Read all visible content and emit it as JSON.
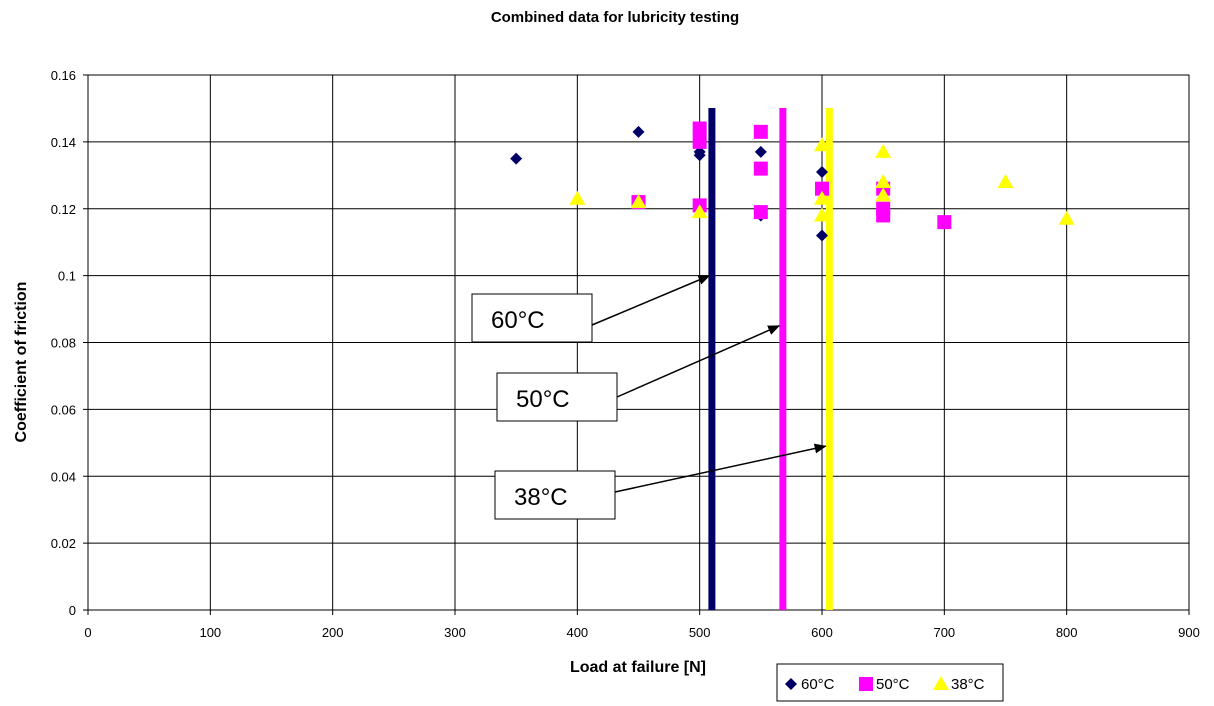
{
  "chart_data": {
    "type": "scatter",
    "title": "Combined data for lubricity testing",
    "xlabel": "Load at failure [N]",
    "ylabel": "Coefficient of friction",
    "xlim": [
      0,
      900
    ],
    "ylim": [
      0,
      0.16
    ],
    "xticks": [
      "0",
      "100",
      "200",
      "300",
      "400",
      "500",
      "600",
      "700",
      "800",
      "900"
    ],
    "yticks": [
      "0",
      "0.02",
      "0.04",
      "0.06",
      "0.08",
      "0.1",
      "0.12",
      "0.14",
      "0.16"
    ],
    "grid": true,
    "legend_position": "bottom-right",
    "series": [
      {
        "name": "60°C",
        "marker": "diamond",
        "color": "#000066",
        "x": [
          350,
          450,
          500,
          500,
          550,
          550,
          550,
          600,
          600,
          600,
          650
        ],
        "y": [
          0.135,
          0.143,
          0.137,
          0.136,
          0.137,
          0.132,
          0.118,
          0.131,
          0.126,
          0.112,
          0.125
        ]
      },
      {
        "name": "50°C",
        "marker": "square",
        "color": "#ff00ff",
        "x": [
          450,
          500,
          500,
          500,
          550,
          550,
          550,
          600,
          650,
          650,
          650,
          700
        ],
        "y": [
          0.122,
          0.144,
          0.14,
          0.121,
          0.143,
          0.132,
          0.119,
          0.126,
          0.126,
          0.12,
          0.118,
          0.116
        ]
      },
      {
        "name": "38°C",
        "marker": "triangle",
        "color": "#ffff00",
        "x": [
          400,
          450,
          500,
          600,
          600,
          600,
          650,
          650,
          650,
          750,
          800
        ],
        "y": [
          0.123,
          0.122,
          0.119,
          0.139,
          0.123,
          0.118,
          0.137,
          0.128,
          0.124,
          0.128,
          0.117
        ]
      }
    ],
    "vertical_lines": [
      {
        "label": "60°C",
        "x": 510,
        "color": "#000066"
      },
      {
        "label": "50°C",
        "x": 568,
        "color": "#ff00ff"
      },
      {
        "label": "38°C",
        "x": 606,
        "color": "#ffff00"
      }
    ],
    "annotations": [
      {
        "text": "60°C",
        "points_to": [
          508,
          0.1
        ]
      },
      {
        "text": "50°C",
        "points_to": [
          565,
          0.085
        ]
      },
      {
        "text": "38°C",
        "points_to": [
          603,
          0.049
        ]
      }
    ]
  }
}
